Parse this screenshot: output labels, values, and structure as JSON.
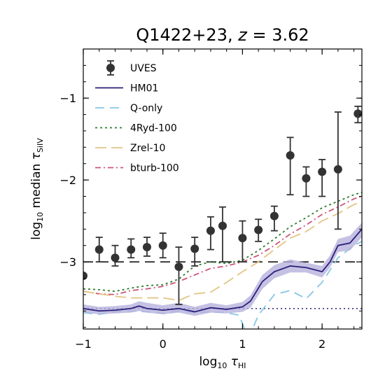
{
  "chart_data": {
    "type": "line",
    "title": {
      "prefix": "Q1422+23, ",
      "var": "z",
      "suffix": " = 3.62"
    },
    "xlabel": {
      "prefix": "log",
      "sub1": "10",
      "sym": " τ",
      "sub2": "HI"
    },
    "ylabel": {
      "prefix": "log",
      "sub1": "10",
      "mid": " median ",
      "sym": "τ",
      "sub2": "SiIV"
    },
    "xlim": [
      -1.0,
      2.5
    ],
    "ylim": [
      -3.82,
      -0.4
    ],
    "xticks": [
      -1,
      0,
      1,
      2
    ],
    "xtick_labels": [
      "−1",
      "0",
      "1",
      "2"
    ],
    "yticks": [
      -1,
      -2,
      -3
    ],
    "ytick_labels": [
      "−1",
      "−2",
      "−3"
    ],
    "legend_position": "top-left",
    "hlines": [
      {
        "name": "noise-level",
        "y": -3.0,
        "color": "#000000",
        "dash": "14,8"
      },
      {
        "name": "floor",
        "y": -3.57,
        "color": "#2b1f7a",
        "dash": "2,4"
      }
    ],
    "series": [
      {
        "name": "UVES",
        "style": "errorbar",
        "color": "#333333",
        "points": [
          {
            "x": -1.0,
            "y": -3.17,
            "lo": -3.17,
            "hi": -3.17
          },
          {
            "x": -0.8,
            "y": -2.85,
            "lo": -3.0,
            "hi": -2.7
          },
          {
            "x": -0.6,
            "y": -2.95,
            "lo": -3.05,
            "hi": -2.8
          },
          {
            "x": -0.4,
            "y": -2.85,
            "lo": -2.95,
            "hi": -2.72
          },
          {
            "x": -0.2,
            "y": -2.82,
            "lo": -2.93,
            "hi": -2.7
          },
          {
            "x": 0.0,
            "y": -2.8,
            "lo": -2.95,
            "hi": -2.65
          },
          {
            "x": 0.2,
            "y": -3.06,
            "lo": -3.52,
            "hi": -2.82
          },
          {
            "x": 0.4,
            "y": -2.84,
            "lo": -3.05,
            "hi": -2.7
          },
          {
            "x": 0.6,
            "y": -2.62,
            "lo": -2.85,
            "hi": -2.45
          },
          {
            "x": 0.75,
            "y": -2.56,
            "lo": -3.0,
            "hi": -2.33
          },
          {
            "x": 1.0,
            "y": -2.71,
            "lo": -3.0,
            "hi": -2.5
          },
          {
            "x": 1.2,
            "y": -2.61,
            "lo": -2.75,
            "hi": -2.48
          },
          {
            "x": 1.4,
            "y": -2.44,
            "lo": -2.62,
            "hi": -2.32
          },
          {
            "x": 1.6,
            "y": -1.7,
            "lo": -2.18,
            "hi": -1.48
          },
          {
            "x": 1.8,
            "y": -1.98,
            "lo": -2.2,
            "hi": -1.84
          },
          {
            "x": 2.0,
            "y": -1.9,
            "lo": -2.2,
            "hi": -1.75
          },
          {
            "x": 2.2,
            "y": -1.87,
            "lo": -2.6,
            "hi": -1.17
          },
          {
            "x": 2.45,
            "y": -1.19,
            "lo": -1.3,
            "hi": -1.1
          }
        ]
      },
      {
        "name": "HM01",
        "style": "line",
        "color": "#2b1f7a",
        "dash": "",
        "band_color": "#b7b2dc",
        "x": [
          -1.0,
          -0.8,
          -0.6,
          -0.4,
          -0.3,
          -0.2,
          0.0,
          0.2,
          0.4,
          0.6,
          0.8,
          1.0,
          1.1,
          1.25,
          1.4,
          1.6,
          1.8,
          2.0,
          2.1,
          2.2,
          2.35,
          2.5
        ],
        "y": [
          -3.57,
          -3.6,
          -3.59,
          -3.57,
          -3.54,
          -3.57,
          -3.59,
          -3.57,
          -3.61,
          -3.56,
          -3.58,
          -3.55,
          -3.48,
          -3.24,
          -3.12,
          -3.05,
          -3.07,
          -3.12,
          -3.0,
          -2.8,
          -2.77,
          -2.6
        ],
        "band_lo": [
          -3.62,
          -3.64,
          -3.63,
          -3.62,
          -3.6,
          -3.62,
          -3.64,
          -3.62,
          -3.66,
          -3.62,
          -3.63,
          -3.61,
          -3.56,
          -3.33,
          -3.2,
          -3.13,
          -3.13,
          -3.19,
          -3.07,
          -2.88,
          -2.86,
          -2.7
        ],
        "band_hi": [
          -3.52,
          -3.55,
          -3.54,
          -3.52,
          -3.48,
          -3.5,
          -3.53,
          -3.5,
          -3.55,
          -3.5,
          -3.53,
          -3.49,
          -3.41,
          -3.16,
          -3.04,
          -2.97,
          -3.01,
          -3.05,
          -2.92,
          -2.72,
          -2.68,
          -2.52
        ]
      },
      {
        "name": "Q-only",
        "style": "line",
        "color": "#86c5e6",
        "dash": "13,8",
        "x": [
          -1.0,
          -0.8,
          -0.6,
          -0.4,
          -0.2,
          0.0,
          0.2,
          0.4,
          0.6,
          0.8,
          0.95,
          1.0,
          1.05,
          1.1,
          1.2,
          1.4,
          1.6,
          1.8,
          2.0,
          2.2,
          2.4,
          2.5
        ],
        "y": [
          -3.62,
          -3.64,
          -3.61,
          -3.6,
          -3.61,
          -3.63,
          -3.6,
          -3.62,
          -3.61,
          -3.62,
          -3.65,
          -3.75,
          -3.9,
          -3.88,
          -3.65,
          -3.4,
          -3.35,
          -3.45,
          -3.25,
          -2.95,
          -2.8,
          -2.75
        ]
      },
      {
        "name": "4Ryd-100",
        "style": "line",
        "color": "#2e7d32",
        "dash": "3,4",
        "x": [
          -1.0,
          -0.8,
          -0.6,
          -0.4,
          -0.2,
          0.0,
          0.2,
          0.4,
          0.6,
          0.8,
          1.0,
          1.2,
          1.4,
          1.6,
          1.8,
          2.0,
          2.2,
          2.4,
          2.5
        ],
        "y": [
          -3.33,
          -3.34,
          -3.36,
          -3.32,
          -3.29,
          -3.28,
          -3.21,
          -3.05,
          -3.0,
          -3.02,
          -2.98,
          -2.86,
          -2.72,
          -2.57,
          -2.46,
          -2.34,
          -2.26,
          -2.18,
          -2.15
        ]
      },
      {
        "name": "Zrel-10",
        "style": "line",
        "color": "#e3c585",
        "dash": "16,7",
        "x": [
          -1.0,
          -0.8,
          -0.6,
          -0.4,
          -0.2,
          0.0,
          0.2,
          0.4,
          0.6,
          0.8,
          1.0,
          1.2,
          1.4,
          1.6,
          1.8,
          2.0,
          2.2,
          2.4,
          2.5
        ],
        "y": [
          -3.36,
          -3.39,
          -3.42,
          -3.44,
          -3.44,
          -3.44,
          -3.47,
          -3.39,
          -3.37,
          -3.25,
          -3.12,
          -3.0,
          -2.85,
          -2.71,
          -2.63,
          -2.5,
          -2.41,
          -2.3,
          -2.27
        ]
      },
      {
        "name": "bturb-100",
        "style": "line",
        "color": "#cc5577",
        "dash": "8,4,2,4",
        "x": [
          -1.0,
          -0.8,
          -0.6,
          -0.4,
          -0.2,
          0.0,
          0.2,
          0.4,
          0.6,
          0.8,
          1.0,
          1.2,
          1.4,
          1.6,
          1.8,
          2.0,
          2.2,
          2.4,
          2.5
        ],
        "y": [
          -3.36,
          -3.39,
          -3.4,
          -3.35,
          -3.33,
          -3.3,
          -3.24,
          -3.16,
          -3.08,
          -3.05,
          -3.0,
          -2.92,
          -2.8,
          -2.66,
          -2.55,
          -2.42,
          -2.33,
          -2.23,
          -2.2
        ]
      }
    ]
  }
}
